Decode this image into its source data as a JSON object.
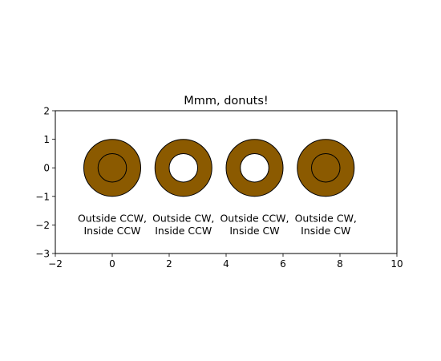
{
  "chart_data": {
    "type": "shape-plot",
    "title": "Mmm, donuts!",
    "xlabel": "",
    "ylabel": "",
    "xlim": [
      -2,
      10
    ],
    "ylim": [
      -3,
      2
    ],
    "aspect": "equal",
    "grid": false,
    "x_ticks": [
      -2,
      0,
      2,
      4,
      6,
      8,
      10
    ],
    "x_tick_labels": [
      "−2",
      "0",
      "2",
      "4",
      "6",
      "8",
      "10"
    ],
    "y_ticks": [
      -3,
      -2,
      -1,
      0,
      1,
      2
    ],
    "y_tick_labels": [
      "−3",
      "−2",
      "−1",
      "0",
      "1",
      "2"
    ],
    "fill_color": "#8b5a00",
    "edge_color": "#000000",
    "donuts": [
      {
        "center_x": 0,
        "center_y": 0,
        "outer_radius": 1,
        "inner_radius": 0.5,
        "hole_filled": true,
        "label_x": 0,
        "label_y": -2,
        "label": "Outside CCW,\nInside CCW"
      },
      {
        "center_x": 2.5,
        "center_y": 0,
        "outer_radius": 1,
        "inner_radius": 0.5,
        "hole_filled": false,
        "label_x": 2.5,
        "label_y": -2,
        "label": "Outside CW,\nInside CCW"
      },
      {
        "center_x": 5,
        "center_y": 0,
        "outer_radius": 1,
        "inner_radius": 0.5,
        "hole_filled": false,
        "label_x": 5,
        "label_y": -2,
        "label": "Outside CCW,\nInside CW"
      },
      {
        "center_x": 7.5,
        "center_y": 0,
        "outer_radius": 1,
        "inner_radius": 0.5,
        "hole_filled": true,
        "label_x": 7.5,
        "label_y": -2,
        "label": "Outside CW,\nInside CW"
      }
    ]
  }
}
